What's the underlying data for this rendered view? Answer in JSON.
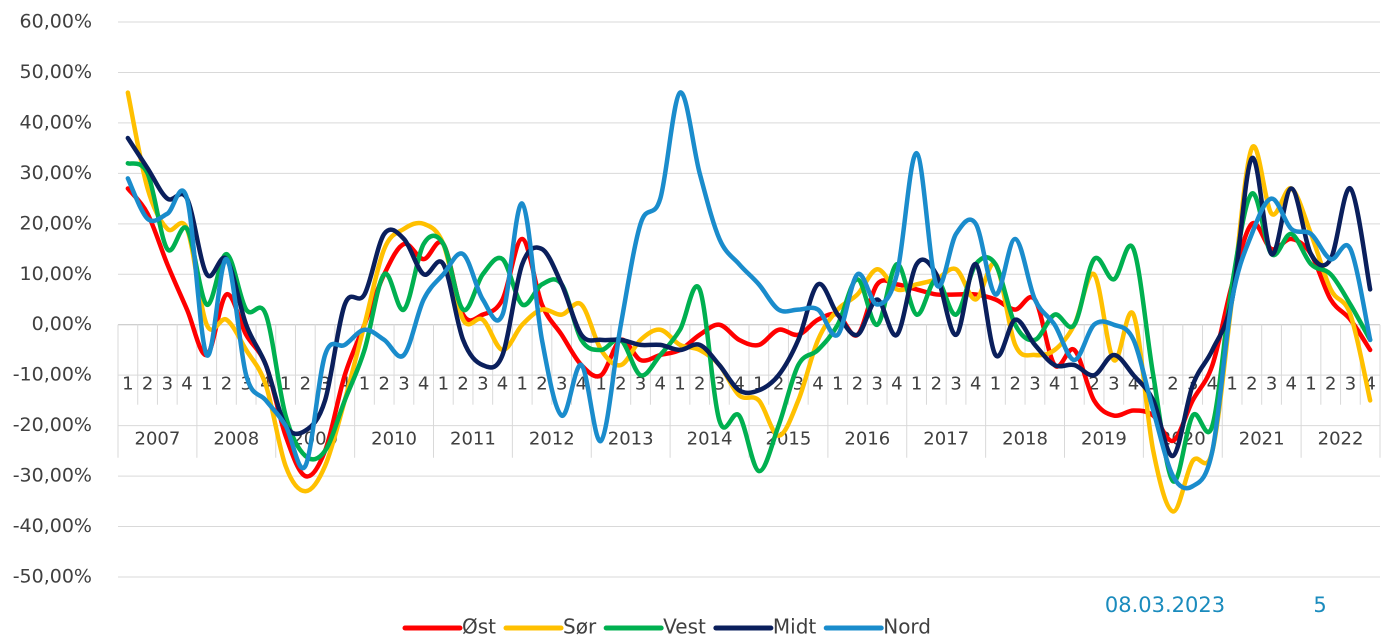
{
  "chart_data": {
    "type": "line",
    "categories": [
      "1",
      "2",
      "3",
      "4",
      "1",
      "2",
      "3",
      "4",
      "1",
      "2",
      "3",
      "4",
      "1",
      "2",
      "3",
      "4",
      "1",
      "2",
      "3",
      "4",
      "1",
      "2",
      "3",
      "4",
      "1",
      "2",
      "3",
      "4",
      "1",
      "2",
      "3",
      "4",
      "1",
      "2",
      "3",
      "4",
      "1",
      "2",
      "3",
      "4",
      "1",
      "2",
      "3",
      "4",
      "1",
      "2",
      "3",
      "4",
      "1",
      "2",
      "3",
      "4",
      "1",
      "2",
      "3",
      "4",
      "1",
      "2",
      "3",
      "4",
      "1",
      "2",
      "3",
      "4"
    ],
    "groups": [
      "2007",
      "2008",
      "2009",
      "2010",
      "2011",
      "2012",
      "2013",
      "2014",
      "2015",
      "2016",
      "2017",
      "2018",
      "2019",
      "2020",
      "2021",
      "2022"
    ],
    "series": [
      {
        "name": "Øst",
        "color": "#ff0000",
        "values": [
          27,
          22,
          12,
          3,
          -6,
          6,
          -2,
          -8,
          -22,
          -30,
          -25,
          -10,
          0,
          10,
          16,
          13,
          16,
          2,
          2,
          5,
          17,
          4,
          -2,
          -8,
          -10,
          -3,
          -7,
          -6,
          -5,
          -2,
          0,
          -3,
          -4,
          -1,
          -2,
          1,
          2,
          -2,
          8,
          8,
          7,
          6,
          6,
          6,
          5,
          3,
          5,
          -8,
          -5,
          -15,
          -18,
          -17,
          -18,
          -23,
          -15,
          -8,
          8,
          20,
          15,
          17,
          14,
          5,
          1,
          -5
        ]
      },
      {
        "name": "Sør",
        "color": "#ffc000",
        "values": [
          46,
          27,
          19,
          19,
          0,
          1,
          -5,
          -12,
          -28,
          -33,
          -28,
          -15,
          0,
          15,
          19,
          20,
          16,
          1,
          1,
          -5,
          0,
          3,
          2,
          4,
          -5,
          -8,
          -3,
          -1,
          -4,
          -5,
          -8,
          -14,
          -15,
          -22,
          -15,
          -3,
          3,
          6,
          11,
          7,
          8,
          9,
          11,
          5,
          12,
          -4,
          -6,
          -5,
          0,
          10,
          -7,
          2,
          -25,
          -37,
          -27,
          -25,
          5,
          35,
          22,
          27,
          18,
          7,
          2,
          -15
        ]
      },
      {
        "name": "Vest",
        "color": "#00b050",
        "values": [
          32,
          30,
          15,
          19,
          4,
          14,
          3,
          2,
          -18,
          -26,
          -25,
          -15,
          -5,
          10,
          3,
          16,
          16,
          3,
          10,
          13,
          4,
          8,
          8,
          -3,
          -5,
          -3,
          -10,
          -6,
          -1,
          7,
          -19,
          -18,
          -29,
          -20,
          -8,
          -5,
          0,
          9,
          0,
          12,
          2,
          9,
          2,
          12,
          12,
          0,
          -3,
          2,
          0,
          13,
          9,
          15,
          -10,
          -31,
          -18,
          -20,
          8,
          26,
          14,
          18,
          12,
          10,
          4,
          -3
        ]
      },
      {
        "name": "Midt",
        "color": "#0a1f5c",
        "values": [
          37,
          31,
          25,
          25,
          10,
          13,
          0,
          -8,
          -20,
          -21,
          -15,
          4,
          6,
          18,
          17,
          10,
          12,
          -3,
          -8,
          -6,
          12,
          15,
          8,
          -2,
          -3,
          -3,
          -4,
          -4,
          -5,
          -4,
          -8,
          -13,
          -13,
          -10,
          -3,
          8,
          2,
          -2,
          5,
          -2,
          12,
          10,
          -2,
          12,
          -6,
          1,
          -4,
          -8,
          -8,
          -10,
          -6,
          -10,
          -15,
          -26,
          -12,
          -5,
          5,
          33,
          14,
          27,
          14,
          13,
          27,
          7
        ]
      },
      {
        "name": "Nord",
        "color": "#1a8ccc",
        "values": [
          29,
          21,
          22,
          25,
          -6,
          13,
          -10,
          -15,
          -20,
          -28,
          -6,
          -4,
          -1,
          -3,
          -6,
          5,
          10,
          14,
          5,
          2,
          24,
          -3,
          -18,
          -8,
          -23,
          0,
          20,
          25,
          46,
          30,
          17,
          12,
          8,
          3,
          3,
          3,
          -2,
          10,
          4,
          10,
          34,
          8,
          18,
          20,
          6,
          17,
          5,
          0,
          -7,
          0,
          0,
          -3,
          -17,
          -30,
          -32,
          -25,
          5,
          18,
          25,
          19,
          18,
          13,
          15,
          -3
        ]
      }
    ],
    "ylim": [
      -50,
      60
    ],
    "yticks": [
      {
        "value": -50,
        "label": "-50,00%"
      },
      {
        "value": -40,
        "label": "-40,00%"
      },
      {
        "value": -30,
        "label": "-30,00%"
      },
      {
        "value": -20,
        "label": "-20,00%"
      },
      {
        "value": -10,
        "label": "-10,00%"
      },
      {
        "value": 0,
        "label": "0,00%"
      },
      {
        "value": 10,
        "label": "10,00%"
      },
      {
        "value": 20,
        "label": "20,00%"
      },
      {
        "value": 30,
        "label": "30,00%"
      },
      {
        "value": 40,
        "label": "40,00%"
      },
      {
        "value": 50,
        "label": "50,00%"
      },
      {
        "value": 60,
        "label": "60,00%"
      }
    ],
    "grid": true,
    "legend": "bottom"
  },
  "footer": {
    "date": "08.03.2023",
    "page": "5"
  }
}
